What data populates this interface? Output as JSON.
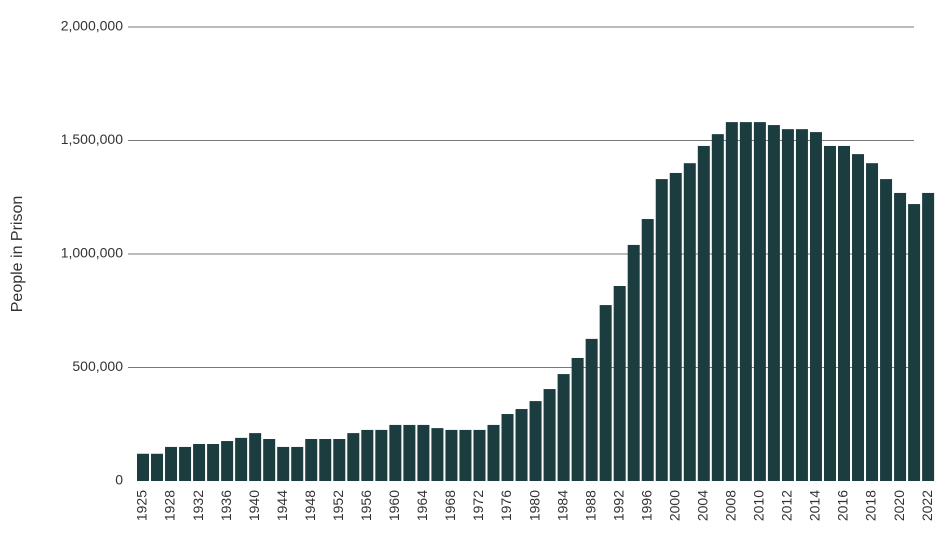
{
  "chart_data": {
    "type": "bar",
    "y_axis_label": "People in Prison",
    "categories": [
      "1925",
      null,
      "1928",
      null,
      "1932",
      null,
      "1936",
      null,
      "1940",
      null,
      "1944",
      null,
      "1948",
      null,
      "1952",
      null,
      "1956",
      null,
      "1960",
      null,
      "1964",
      null,
      "1968",
      null,
      "1972",
      null,
      "1976",
      null,
      "1980",
      null,
      "1984",
      null,
      "1988",
      null,
      "1992",
      null,
      "1996",
      null,
      "2000",
      null,
      "2004",
      null,
      "2008",
      null,
      "2010",
      null,
      "2012",
      null,
      "2014",
      null,
      "2016",
      null,
      "2018",
      null,
      "2020",
      null,
      "2022"
    ],
    "values": [
      120000,
      120000,
      150000,
      150000,
      163000,
      163000,
      176000,
      190000,
      211000,
      185000,
      150000,
      150000,
      185000,
      185000,
      185000,
      211000,
      225000,
      225000,
      247000,
      247000,
      247000,
      233000,
      225000,
      225000,
      225000,
      247000,
      295000,
      317000,
      352000,
      405000,
      471000,
      542000,
      626000,
      775000,
      859000,
      1040000,
      1154000,
      1330000,
      1357000,
      1400000,
      1476000,
      1528000,
      1581000,
      1581000,
      1581000,
      1568000,
      1550000,
      1550000,
      1537000,
      1476000,
      1476000,
      1440000,
      1400000,
      1330000,
      1269000,
      1220000,
      1269000
    ],
    "color": "#1b3d40",
    "ylim": [
      0,
      2000000
    ],
    "yticks": [
      0,
      {
        "value": 500000,
        "label": "500,000"
      },
      {
        "value": 1000000,
        "label": "1,000,000"
      },
      {
        "value": 1500000,
        "label": "1,500,000"
      },
      {
        "value": 2000000,
        "label": "2,000,000"
      }
    ],
    "grid": true
  }
}
